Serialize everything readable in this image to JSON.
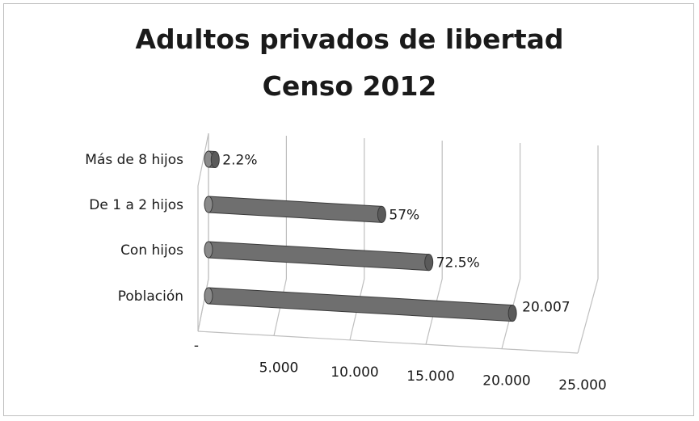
{
  "chart_data": {
    "type": "bar",
    "orientation": "horizontal",
    "style": "3d-cylinder",
    "title": "Adultos privados de libertad",
    "subtitle": "Censo 2012",
    "categories": [
      "Más de 8 hijos",
      "De 1 a 2 hijos",
      "Con hijos",
      "Población"
    ],
    "values": [
      441,
      11404,
      14505,
      20007
    ],
    "data_labels": [
      "2.2%",
      "57%",
      "72.5%",
      "20.007"
    ],
    "x_ticks": [
      "-",
      "5.000",
      "10.000",
      "15.000",
      "20.000",
      "25.000"
    ],
    "xlim": [
      0,
      25000
    ],
    "grid": true,
    "legend": "none",
    "colors": {
      "bar": "#6f6f6f",
      "bar_edge": "#3a3a3a",
      "grid": "#bfbfbf",
      "text": "#1a1a1a"
    }
  }
}
